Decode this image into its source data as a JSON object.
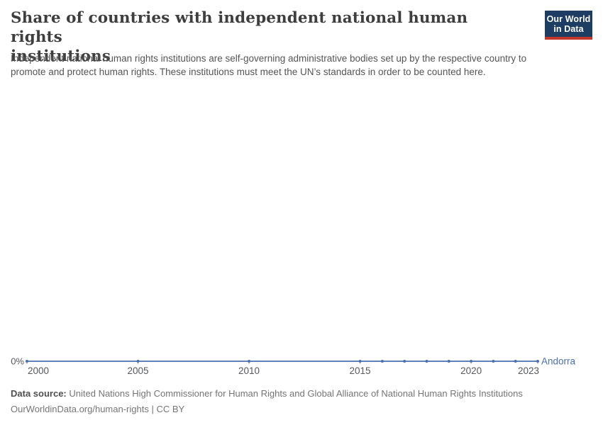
{
  "header": {
    "title": "Share of countries with independent national human rights institutions",
    "title_lines": [
      "Share of countries with independent national human rights",
      "institutions"
    ],
    "logo": {
      "line1": "Our World",
      "line2": "in Data",
      "bg_color": "#1d3d63",
      "accent_color": "#c4352c"
    }
  },
  "subtitle": {
    "full": "Independent national human rights institutions are self-governing administrative bodies set up by the respective country to promote and protect human rights. These institutions must meet the UN’s standards in order to be counted here.",
    "line1": "Independent national human rights institutions are self-governing administrative bodies set up by the respective country to",
    "line2": "promote and protect human rights. These institutions must meet the UN’s standards in order to be counted here."
  },
  "chart_data": {
    "type": "line",
    "title": "Share of countries with independent national human rights institutions",
    "units": "%",
    "xlim": [
      2000,
      2023
    ],
    "ylim": [
      0,
      100
    ],
    "grid": false,
    "x_ticks": [
      2000,
      2005,
      2010,
      2015,
      2020,
      2023
    ],
    "y_tick_labels": [
      "0%"
    ],
    "legend_position": "end-of-line",
    "series": [
      {
        "name": "Andorra",
        "color": "#4d6fae",
        "x": [
          2000,
          2005,
          2010,
          2015,
          2016,
          2017,
          2018,
          2019,
          2020,
          2021,
          2022,
          2023
        ],
        "values": [
          0,
          0,
          0,
          0,
          0,
          0,
          0,
          0,
          0,
          0,
          0,
          0
        ]
      }
    ]
  },
  "axis_style": {
    "tick_label_color": "#56585c",
    "tick_mark_color": "#a5a5a5"
  },
  "footer": {
    "datasource_label": "Data source:",
    "datasource_text": "United Nations High Commissioner for Human Rights and Global Alliance of National Human Rights Institutions",
    "attribution_url": "OurWorldinData.org/human-rights",
    "separator": "|",
    "license": "CC BY"
  }
}
